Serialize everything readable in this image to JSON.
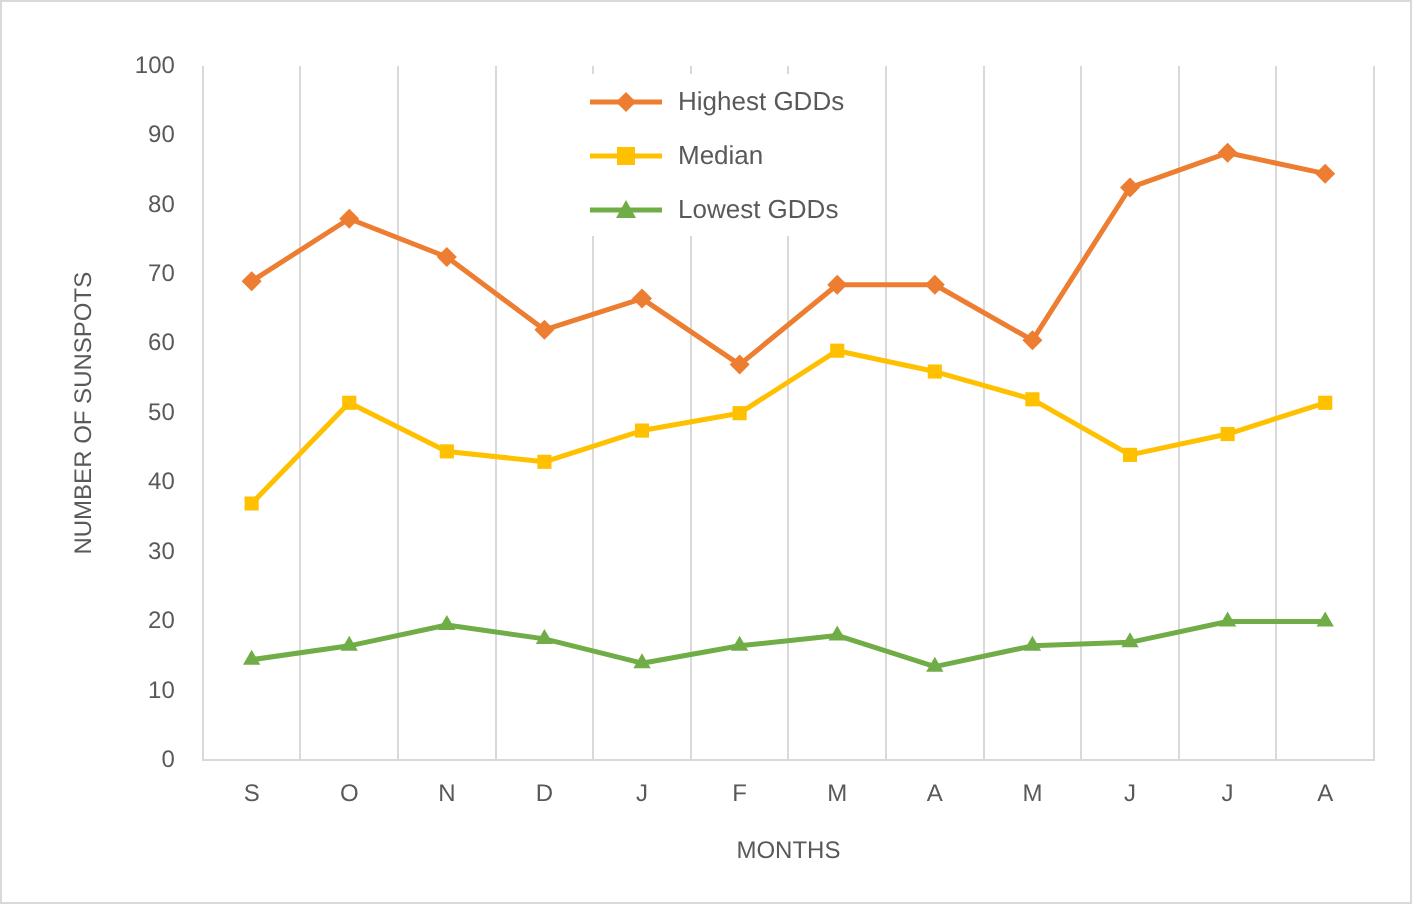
{
  "chart_data": {
    "type": "line",
    "xlabel": "MONTHS",
    "ylabel": "NUMBER OF SUNSPOTS",
    "categories": [
      "S",
      "O",
      "N",
      "D",
      "J",
      "F",
      "M",
      "A",
      "M",
      "J",
      "J",
      "A"
    ],
    "series": [
      {
        "name": "Highest GDDs",
        "color": "#ed7d31",
        "marker": "diamond",
        "values": [
          69,
          78,
          72.5,
          62,
          66.5,
          57,
          68.5,
          68.5,
          60.5,
          82.5,
          87.5,
          84.5
        ]
      },
      {
        "name": "Median",
        "color": "#ffc000",
        "marker": "square",
        "values": [
          37,
          51.5,
          44.5,
          43,
          47.5,
          50,
          59,
          56,
          52,
          44,
          47,
          51.5
        ]
      },
      {
        "name": "Lowest GDDs",
        "color": "#70ad47",
        "marker": "triangle",
        "values": [
          14.5,
          16.5,
          19.5,
          17.5,
          14,
          16.5,
          18,
          13.5,
          16.5,
          17,
          20,
          20
        ]
      }
    ],
    "ylim": [
      0,
      100
    ],
    "yticks": [
      0,
      10,
      20,
      30,
      40,
      50,
      60,
      70,
      80,
      90,
      100
    ],
    "grid": "x",
    "legend": "top",
    "line_style": "solid"
  }
}
